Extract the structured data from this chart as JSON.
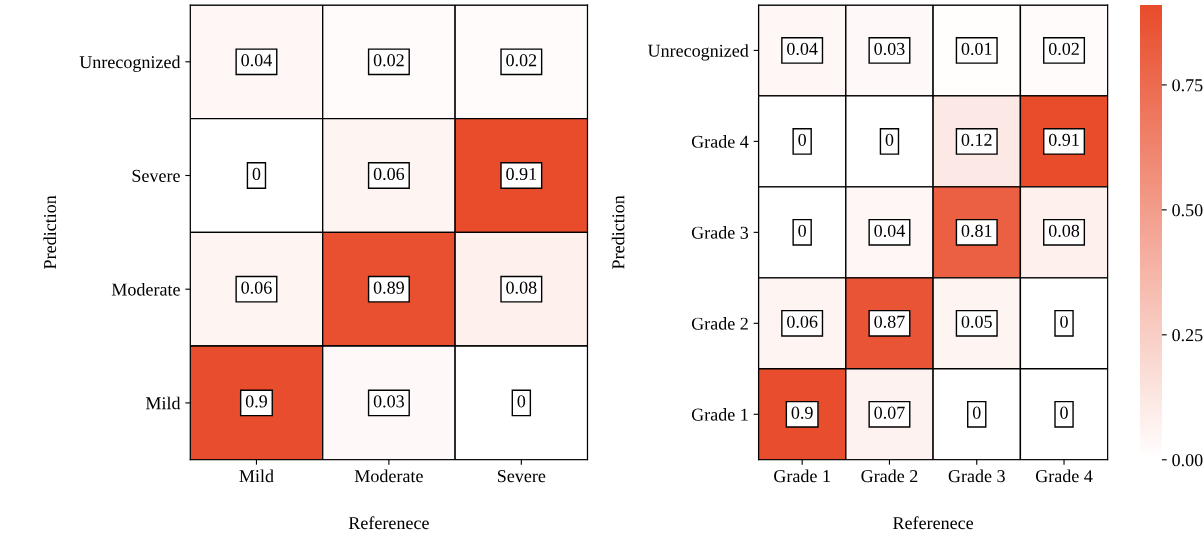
{
  "chart_data": [
    {
      "type": "heatmap",
      "xlabel": "Referenece",
      "ylabel": "Prediction",
      "categories": [
        "Mild",
        "Moderate",
        "Severe"
      ],
      "y_categories": [
        "Unrecognized",
        "Severe",
        "Moderate",
        "Mild"
      ],
      "color": "#e84c2b",
      "data_labels": true,
      "cells": [
        [
          0.04,
          0.02,
          0.02
        ],
        [
          0,
          0.06,
          0.91
        ],
        [
          0.06,
          0.89,
          0.08
        ],
        [
          0.9,
          0.03,
          0
        ]
      ]
    },
    {
      "type": "heatmap",
      "xlabel": "Referenece",
      "ylabel": "Prediction",
      "categories": [
        "Grade 1",
        "Grade 2",
        "Grade 3",
        "Grade 4"
      ],
      "y_categories": [
        "Unrecognized",
        "Grade 4",
        "Grade 3",
        "Grade 2",
        "Grade 1"
      ],
      "color": "#e84c2b",
      "data_labels": true,
      "clim": [
        0,
        0.91
      ],
      "cticks": [
        {
          "value": 0,
          "label": "0.00"
        },
        {
          "value": 0.25,
          "label": "0.25"
        },
        {
          "value": 0.5,
          "label": "0.50"
        },
        {
          "value": 0.75,
          "label": "0.75"
        }
      ],
      "cells": [
        [
          0.04,
          0.03,
          0.01,
          0.02
        ],
        [
          0,
          0,
          0.12,
          0.91
        ],
        [
          0,
          0.04,
          0.81,
          0.08
        ],
        [
          0.06,
          0.87,
          0.05,
          0
        ],
        [
          0.9,
          0.07,
          0,
          0
        ]
      ]
    }
  ]
}
